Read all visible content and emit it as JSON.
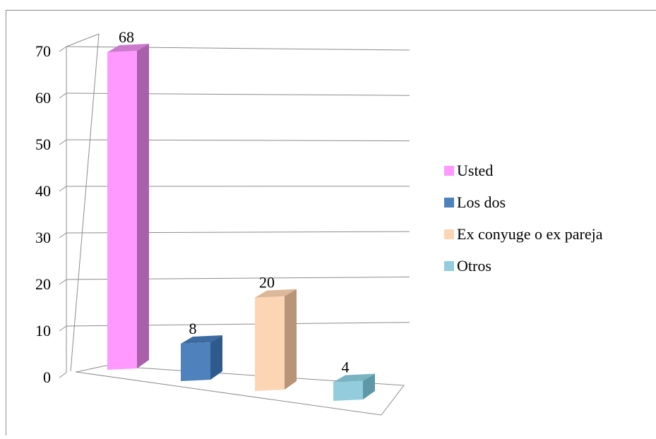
{
  "chart_data": {
    "type": "bar",
    "title": "",
    "xlabel": "",
    "ylabel": "",
    "ylim": [
      0,
      70
    ],
    "yticks": [
      0,
      10,
      20,
      30,
      40,
      50,
      60,
      70
    ],
    "grid": true,
    "legend_position": "right",
    "categories": [
      "Usted",
      "Los dos",
      "Ex conyuge o ex pareja",
      "Otros"
    ],
    "series": [
      {
        "values": [
          68,
          8,
          20,
          4
        ]
      }
    ],
    "data_labels": [
      "68",
      "8",
      "20",
      "4"
    ],
    "colors": [
      {
        "front": "#ff99ff",
        "side": "#a95fa9",
        "top": "#cc7acc"
      },
      {
        "front": "#4f81bd",
        "side": "#2e5a8e",
        "top": "#3d6aa0"
      },
      {
        "front": "#fcd5b5",
        "side": "#b89478",
        "top": "#dcb799"
      },
      {
        "front": "#93cddd",
        "side": "#5e97a6",
        "top": "#79b3c2"
      }
    ],
    "legend": [
      {
        "label": "Usted",
        "color": "#ff99ff"
      },
      {
        "label": "Los dos",
        "color": "#4f81bd"
      },
      {
        "label": "Ex conyuge o ex pareja",
        "color": "#fcd5b5"
      },
      {
        "label": "Otros",
        "color": "#93cddd"
      }
    ]
  }
}
